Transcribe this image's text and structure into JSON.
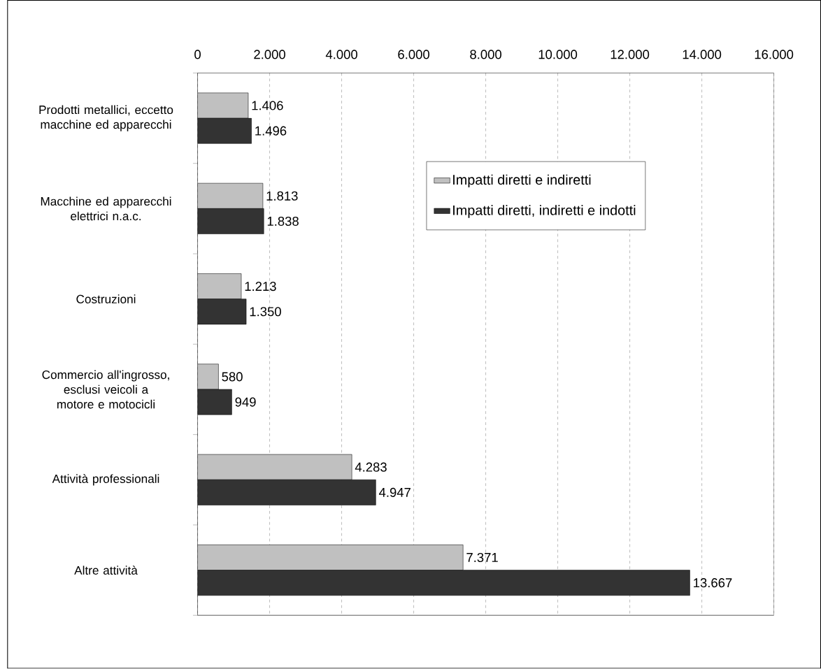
{
  "chart_data": {
    "type": "bar",
    "orientation": "horizontal",
    "categories": [
      "Prodotti metallici, eccetto macchine ed apparecchi",
      "Macchine ed apparecchi elettrici n.a.c.",
      "Costruzioni",
      "Commercio all'ingrosso, esclusi veicoli a motore e motocicli",
      "Attività professionali",
      "Altre attività"
    ],
    "series": [
      {
        "name": "Impatti diretti e indiretti",
        "color": "#c0c0c0",
        "values": [
          1406,
          1813,
          1213,
          580,
          4283,
          7371
        ],
        "value_labels": [
          "1.406",
          "1.813",
          "1.213",
          "580",
          "4.283",
          "7.371"
        ]
      },
      {
        "name": "Impatti diretti, indiretti e indotti",
        "color": "#333333",
        "values": [
          1496,
          1838,
          1350,
          949,
          4947,
          13667
        ],
        "value_labels": [
          "1.496",
          "1.838",
          "1.350",
          "949",
          "4.947",
          "13.667"
        ]
      }
    ],
    "xlim": [
      0,
      16000
    ],
    "xticks": [
      0,
      {
        "value": 2000,
        "label": "2.000"
      },
      {
        "value": 4000,
        "label": "4.000"
      },
      {
        "value": 6000,
        "label": "6.000"
      },
      {
        "value": 8000,
        "label": "8.000"
      },
      {
        "value": 10000,
        "label": "10.000"
      },
      {
        "value": 12000,
        "label": "12.000"
      },
      {
        "value": 14000,
        "label": "14.000"
      },
      {
        "value": 16000,
        "label": "16.000"
      }
    ],
    "grid": "x",
    "legend": "top right"
  }
}
